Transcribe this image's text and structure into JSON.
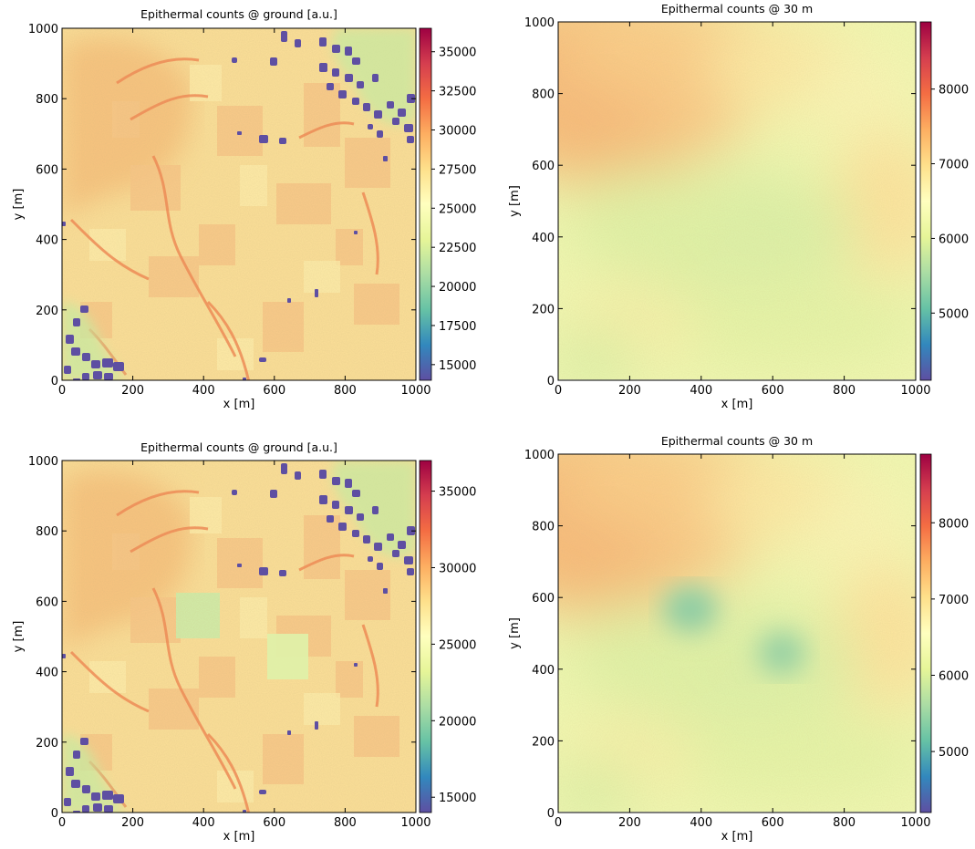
{
  "chart_data": [
    {
      "type": "heatmap",
      "title": "Epithermal counts @ ground [a.u.]",
      "xlabel": "x [m]",
      "ylabel": "y [m]",
      "xlim": [
        0,
        1000
      ],
      "ylim": [
        0,
        1000
      ],
      "xticks": [
        "0",
        "200",
        "400",
        "600",
        "800",
        "1000"
      ],
      "yticks": [
        "0",
        "200",
        "400",
        "600",
        "800",
        "1000"
      ],
      "colorbar": {
        "colormap": "Spectral_r",
        "range": [
          14000,
          36500
        ],
        "ticks": [
          "15000",
          "17500",
          "20000",
          "22500",
          "25000",
          "27500",
          "30000",
          "32500",
          "35000"
        ]
      },
      "colors": {
        "low": "#5e4fa2",
        "mid": "#ffffbf",
        "high": "#9e0142"
      }
    },
    {
      "type": "heatmap",
      "title": "Epithermal counts @ 30 m",
      "xlabel": "x [m]",
      "ylabel": "y [m]",
      "xlim": [
        0,
        1000
      ],
      "ylim": [
        0,
        1000
      ],
      "xticks": [
        "0",
        "200",
        "400",
        "600",
        "800",
        "1000"
      ],
      "yticks": [
        "0",
        "200",
        "400",
        "600",
        "800",
        "1000"
      ],
      "colorbar": {
        "colormap": "Spectral_r",
        "range": [
          4100,
          8900
        ],
        "ticks": [
          "5000",
          "6000",
          "7000",
          "8000"
        ]
      },
      "colors": {
        "low": "#5e4fa2",
        "mid": "#ffffbf",
        "high": "#9e0142"
      }
    },
    {
      "type": "heatmap",
      "title": "Epithermal counts @ ground [a.u.]",
      "xlabel": "x [m]",
      "ylabel": "y [m]",
      "xlim": [
        0,
        1000
      ],
      "ylim": [
        0,
        1000
      ],
      "xticks": [
        "0",
        "200",
        "400",
        "600",
        "800",
        "1000"
      ],
      "yticks": [
        "0",
        "200",
        "400",
        "600",
        "800",
        "1000"
      ],
      "colorbar": {
        "colormap": "Spectral_r",
        "range": [
          14000,
          37000
        ],
        "ticks": [
          "15000",
          "20000",
          "25000",
          "30000",
          "35000"
        ]
      },
      "colors": {
        "low": "#5e4fa2",
        "mid": "#ffffbf",
        "high": "#9e0142"
      }
    },
    {
      "type": "heatmap",
      "title": "Epithermal counts @ 30 m",
      "xlabel": "x [m]",
      "ylabel": "y [m]",
      "xlim": [
        0,
        1000
      ],
      "ylim": [
        0,
        1000
      ],
      "xticks": [
        "0",
        "200",
        "400",
        "600",
        "800",
        "1000"
      ],
      "yticks": [
        "0",
        "200",
        "400",
        "600",
        "800",
        "1000"
      ],
      "colorbar": {
        "colormap": "Spectral_r",
        "range": [
          4200,
          8900
        ],
        "ticks": [
          "5000",
          "6000",
          "7000",
          "8000"
        ]
      },
      "colors": {
        "low": "#5e4fa2",
        "mid": "#ffffbf",
        "high": "#9e0142"
      }
    }
  ]
}
